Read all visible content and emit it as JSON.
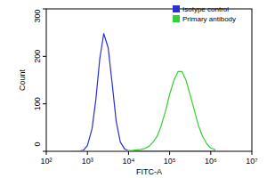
{
  "chart_data": {
    "type": "line",
    "x_label": "FITC-A",
    "y_label": "Count",
    "x": [
      400,
      600,
      800,
      1000,
      1300,
      1600,
      2000,
      2500,
      3200,
      4000,
      5000,
      6300,
      8000,
      10000,
      13000,
      16000,
      20000,
      25000,
      32000,
      40000,
      50000,
      63000,
      80000,
      100000,
      130000,
      160000,
      200000,
      250000,
      320000,
      400000,
      500000,
      630000,
      800000,
      1000000,
      1300000
    ],
    "series": [
      {
        "name": "Isotype control",
        "color": "#2a2fd0",
        "values": [
          0,
          0,
          2,
          12,
          48,
          108,
          195,
          248,
          218,
          143,
          64,
          20,
          5,
          1,
          0,
          0,
          0,
          0,
          0,
          0,
          0,
          0,
          0,
          0,
          0,
          0,
          0,
          0,
          0,
          0,
          0,
          0,
          0,
          0,
          0
        ]
      },
      {
        "name": "Primary antibody",
        "color": "#2fd22f",
        "values": [
          0,
          0,
          0,
          0,
          0,
          0,
          0,
          0,
          0,
          0,
          0,
          0,
          0,
          1,
          2,
          3,
          4,
          6,
          11,
          20,
          32,
          55,
          86,
          120,
          152,
          168,
          168,
          150,
          117,
          86,
          55,
          32,
          16,
          7,
          3
        ]
      }
    ],
    "log": "x",
    "xlim": [
      100,
      10000000
    ],
    "xticks": [
      {
        "value": 100,
        "label": "10²"
      },
      {
        "value": 1000,
        "label": "10³"
      },
      {
        "value": 10000,
        "label": "10⁴"
      },
      {
        "value": 100000,
        "label": "10⁵"
      },
      {
        "value": 1000000,
        "label": "10⁶"
      },
      {
        "value": 10000000,
        "label": "10⁷"
      }
    ],
    "ylim": [
      0,
      300
    ],
    "yticks": [
      0,
      100,
      200,
      300
    ],
    "legend": "top-right",
    "grid": false
  }
}
